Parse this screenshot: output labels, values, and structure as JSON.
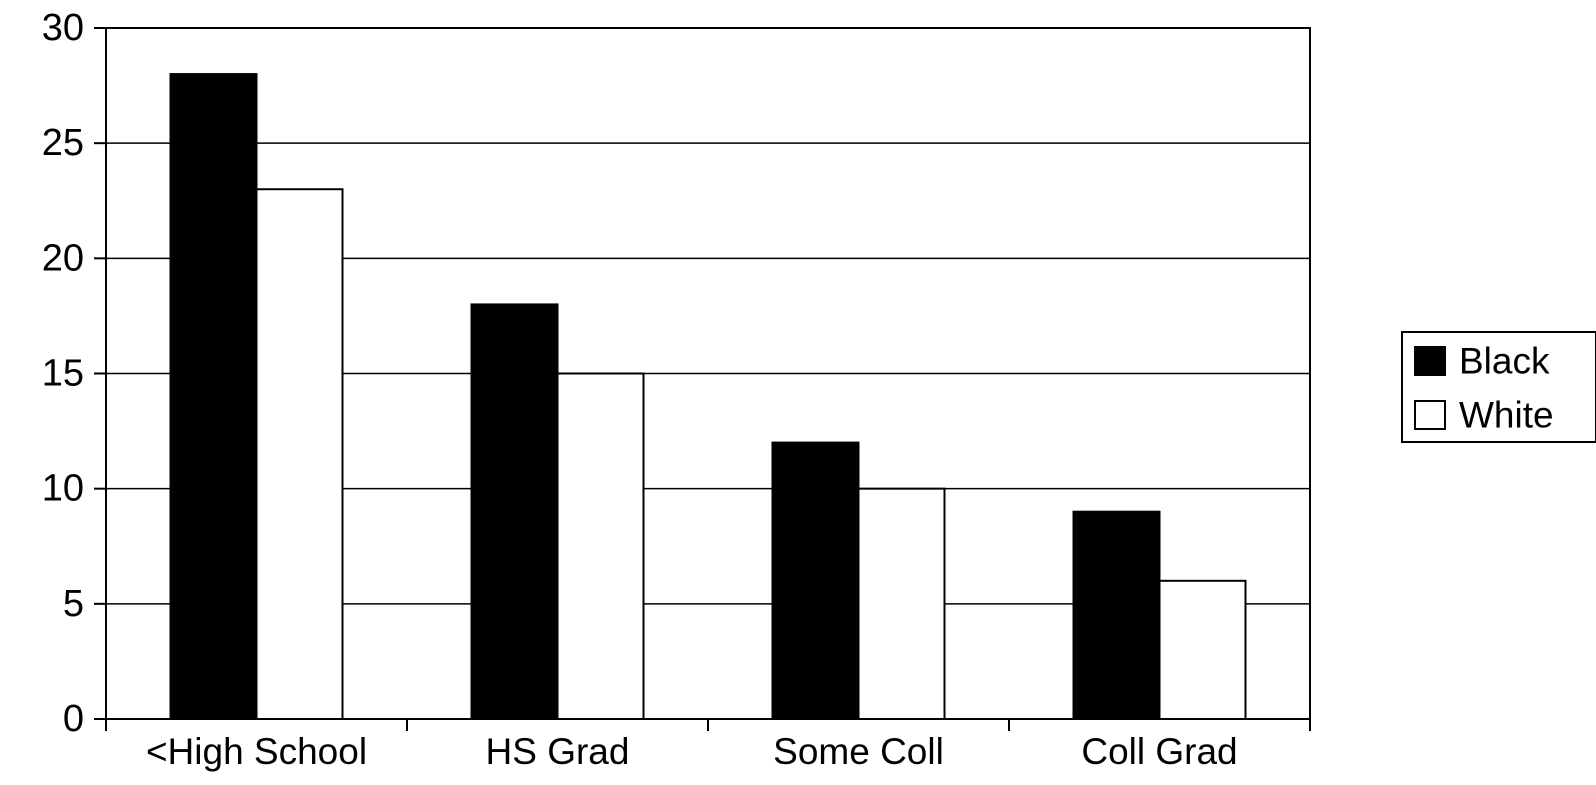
{
  "chart_data": {
    "type": "bar",
    "title": "",
    "xlabel": "",
    "ylabel": "",
    "ylim": [
      0,
      30
    ],
    "yticks": [
      0,
      5,
      10,
      15,
      20,
      25,
      30
    ],
    "grid": true,
    "legend_position": "right",
    "categories": [
      "<High School",
      "HS Grad",
      "Some Coll",
      "Coll Grad"
    ],
    "series": [
      {
        "name": "Black",
        "color": "#000000",
        "values": [
          28,
          18,
          12,
          9
        ]
      },
      {
        "name": "White",
        "color": "#ffffff",
        "values": [
          23,
          15,
          10,
          6
        ]
      }
    ]
  }
}
